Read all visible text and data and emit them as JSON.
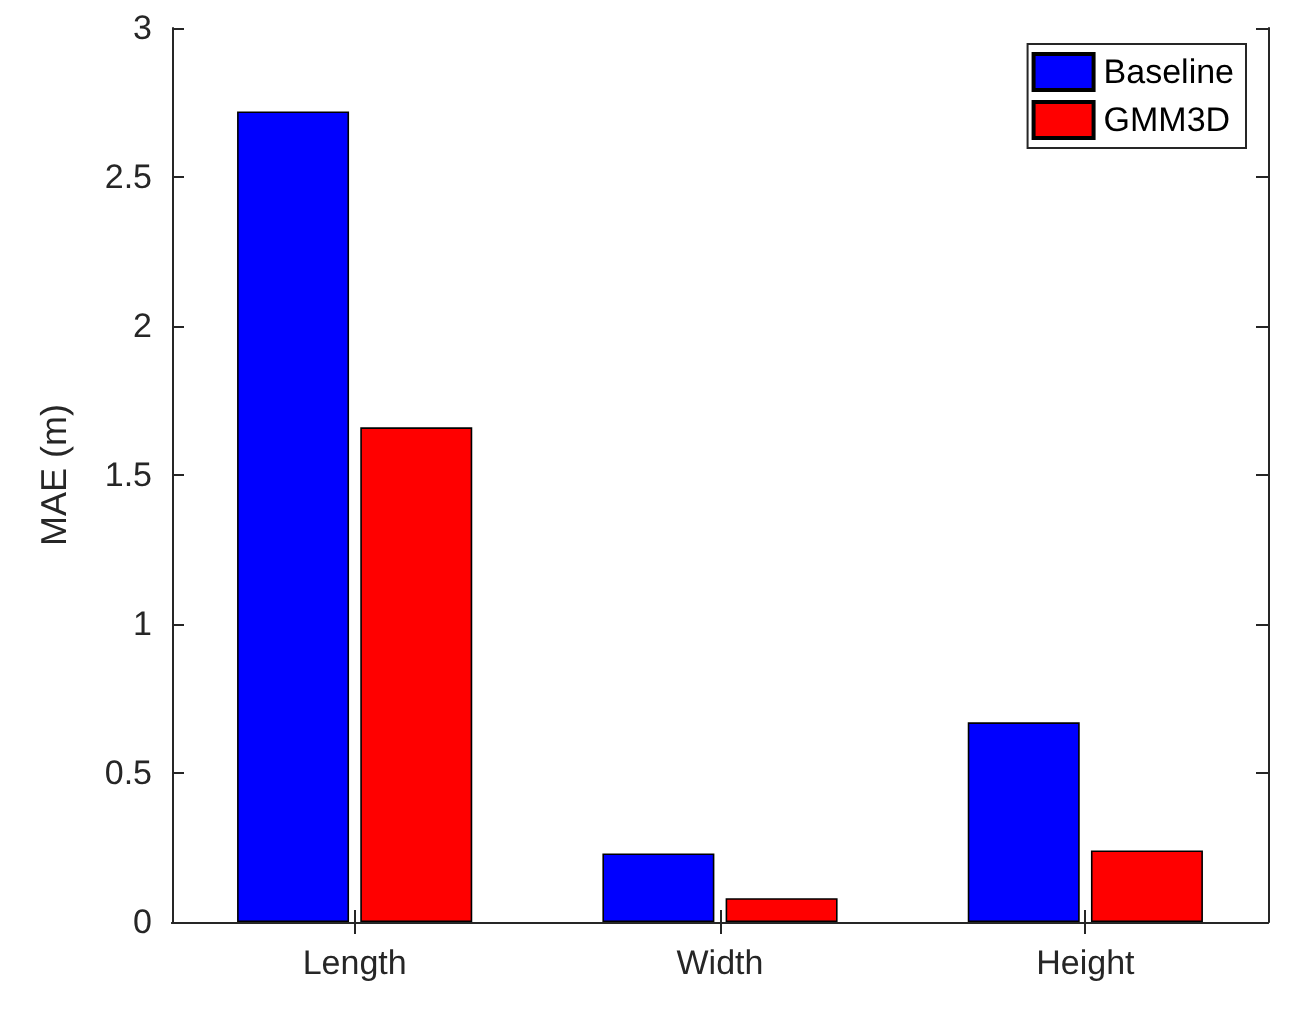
{
  "chart_data": {
    "type": "bar",
    "ylabel": "MAE (m)",
    "categories": [
      "Length",
      "Width",
      "Height"
    ],
    "series": [
      {
        "name": "Baseline",
        "color": "#0000ff",
        "values": [
          2.72,
          0.23,
          0.67
        ]
      },
      {
        "name": "GMM3D",
        "color": "#ff0000",
        "values": [
          1.66,
          0.08,
          0.24
        ]
      }
    ],
    "ylim": [
      0,
      3
    ],
    "yticks": [
      0,
      0.5,
      1,
      1.5,
      2,
      2.5,
      3
    ],
    "grid": false,
    "legend": "top right"
  }
}
